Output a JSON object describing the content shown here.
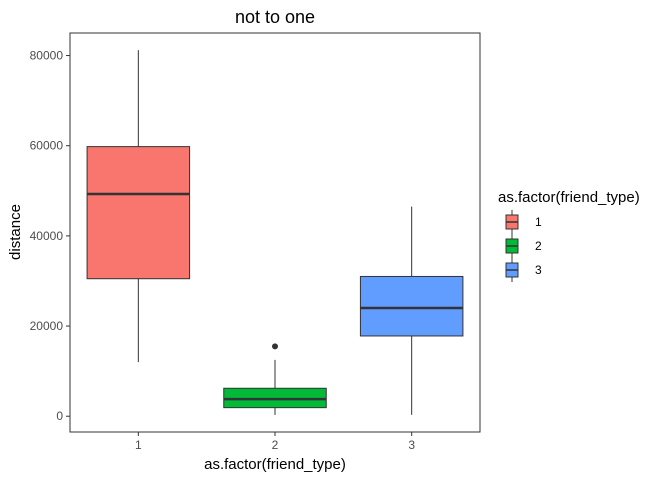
{
  "chart_data": {
    "type": "boxplot",
    "title": "not to one",
    "xlabel": "as.factor(friend_type)",
    "ylabel": "distance",
    "ylim": [
      -3500,
      85000
    ],
    "yticks": [
      0,
      20000,
      40000,
      60000,
      80000
    ],
    "ytick_labels": [
      "0",
      "20000",
      "40000",
      "60000",
      "80000"
    ],
    "categories": [
      "1",
      "2",
      "3"
    ],
    "grid": false,
    "legend": {
      "title": "as.factor(friend_type)",
      "placement": "right",
      "entries": [
        "1",
        "2",
        "3"
      ]
    },
    "boxes": [
      {
        "category": "1",
        "min": 12000,
        "q1": 30500,
        "median": 49300,
        "q3": 59800,
        "max": 81200,
        "outliers": [],
        "color": "#F8766D"
      },
      {
        "category": "2",
        "min": 300,
        "q1": 1900,
        "median": 3800,
        "q3": 6200,
        "max": 12500,
        "outliers": [
          15500
        ],
        "color": "#00BA38"
      },
      {
        "category": "3",
        "min": 300,
        "q1": 17800,
        "median": 24000,
        "q3": 31000,
        "max": 46500,
        "outliers": [],
        "color": "#619CFF"
      }
    ]
  }
}
